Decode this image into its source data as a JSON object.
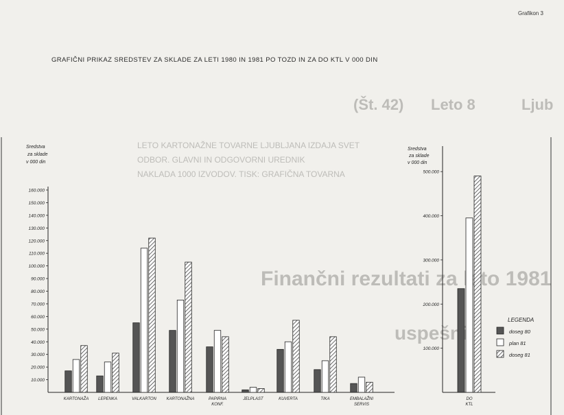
{
  "page_label": "Grafikon 3",
  "title": "GRAFIČNI PRIKAZ SREDSTEV ZA SKLADE ZA LETI 1980 IN 1981 PO TOZD IN ZA DO KTL V 000 DIN",
  "background_bleed": {
    "issue": "(Št. 42)",
    "issue_date": "Leto 8",
    "city": "Ljub",
    "heading": "Finančni rezultati za leto 1981",
    "subheading": "uspešni",
    "line1": "LETO KARTONAŽNE TOVARNE LJUBLJANA IZDAJA SVET",
    "line2": "ODBOR. GLAVNI IN ODGOVORNI UREDNIK",
    "line3": "NAKLADA 1000 IZVODOV. TISK: GRAFIČNA TOVARNA"
  },
  "chart_data": [
    {
      "type": "bar",
      "ylabel": "Sredstva za sklade v 000 din",
      "ylim": [
        0,
        160000
      ],
      "yticks": [
        10000,
        20000,
        30000,
        40000,
        50000,
        60000,
        70000,
        80000,
        90000,
        100000,
        110000,
        120000,
        130000,
        140000,
        150000,
        160000
      ],
      "ytick_labels": [
        "10.000",
        "20.000",
        "30.000",
        "40.000",
        "50.000",
        "60.000",
        "70.000",
        "80.000",
        "90.000",
        "100.000",
        "110.000",
        "120.000",
        "130.000",
        "140.000",
        "150.000",
        "160.000"
      ],
      "categories": [
        "KARTONAŽA",
        "LEPENKA",
        "VALKARTON",
        "KARTONAŽNA",
        "PAPIRNA KONF.",
        "JELPLAST",
        "KUVERTA",
        "TIKA",
        "EMBALAŽNI SERVIS"
      ],
      "series": [
        {
          "name": "doseg 80",
          "values": [
            17000,
            13000,
            55000,
            49000,
            36000,
            2000,
            34000,
            18000,
            7000
          ]
        },
        {
          "name": "plan 81",
          "values": [
            26000,
            24000,
            114000,
            73000,
            49000,
            4000,
            40000,
            25000,
            12000
          ]
        },
        {
          "name": "doseg 81",
          "values": [
            37000,
            31000,
            122000,
            103000,
            44000,
            3000,
            57000,
            44000,
            8000
          ]
        }
      ],
      "grid": false
    },
    {
      "type": "bar",
      "ylabel": "Sredstva za sklade v 000 din",
      "ylim": [
        0,
        550000
      ],
      "yticks": [
        100000,
        200000,
        300000,
        400000,
        500000
      ],
      "ytick_labels": [
        "100.000",
        "200.000",
        "300.000",
        "400.000",
        "500.000"
      ],
      "categories": [
        "DO KTL"
      ],
      "series": [
        {
          "name": "doseg 80",
          "values": [
            235000
          ]
        },
        {
          "name": "plan 81",
          "values": [
            395000
          ]
        },
        {
          "name": "doseg 81",
          "values": [
            490000
          ]
        }
      ],
      "grid": false
    }
  ],
  "legend": {
    "title": "LEGENDA",
    "items": [
      "doseg 80",
      "plan 81",
      "doseg 81"
    ],
    "placement": "right"
  },
  "colors": {
    "background": "#f1f0ec",
    "ink": "#2a2a2a",
    "fill_doseg80": "#555555",
    "fill_plan81": "#ffffff",
    "hatch_doseg81": "#444444"
  }
}
